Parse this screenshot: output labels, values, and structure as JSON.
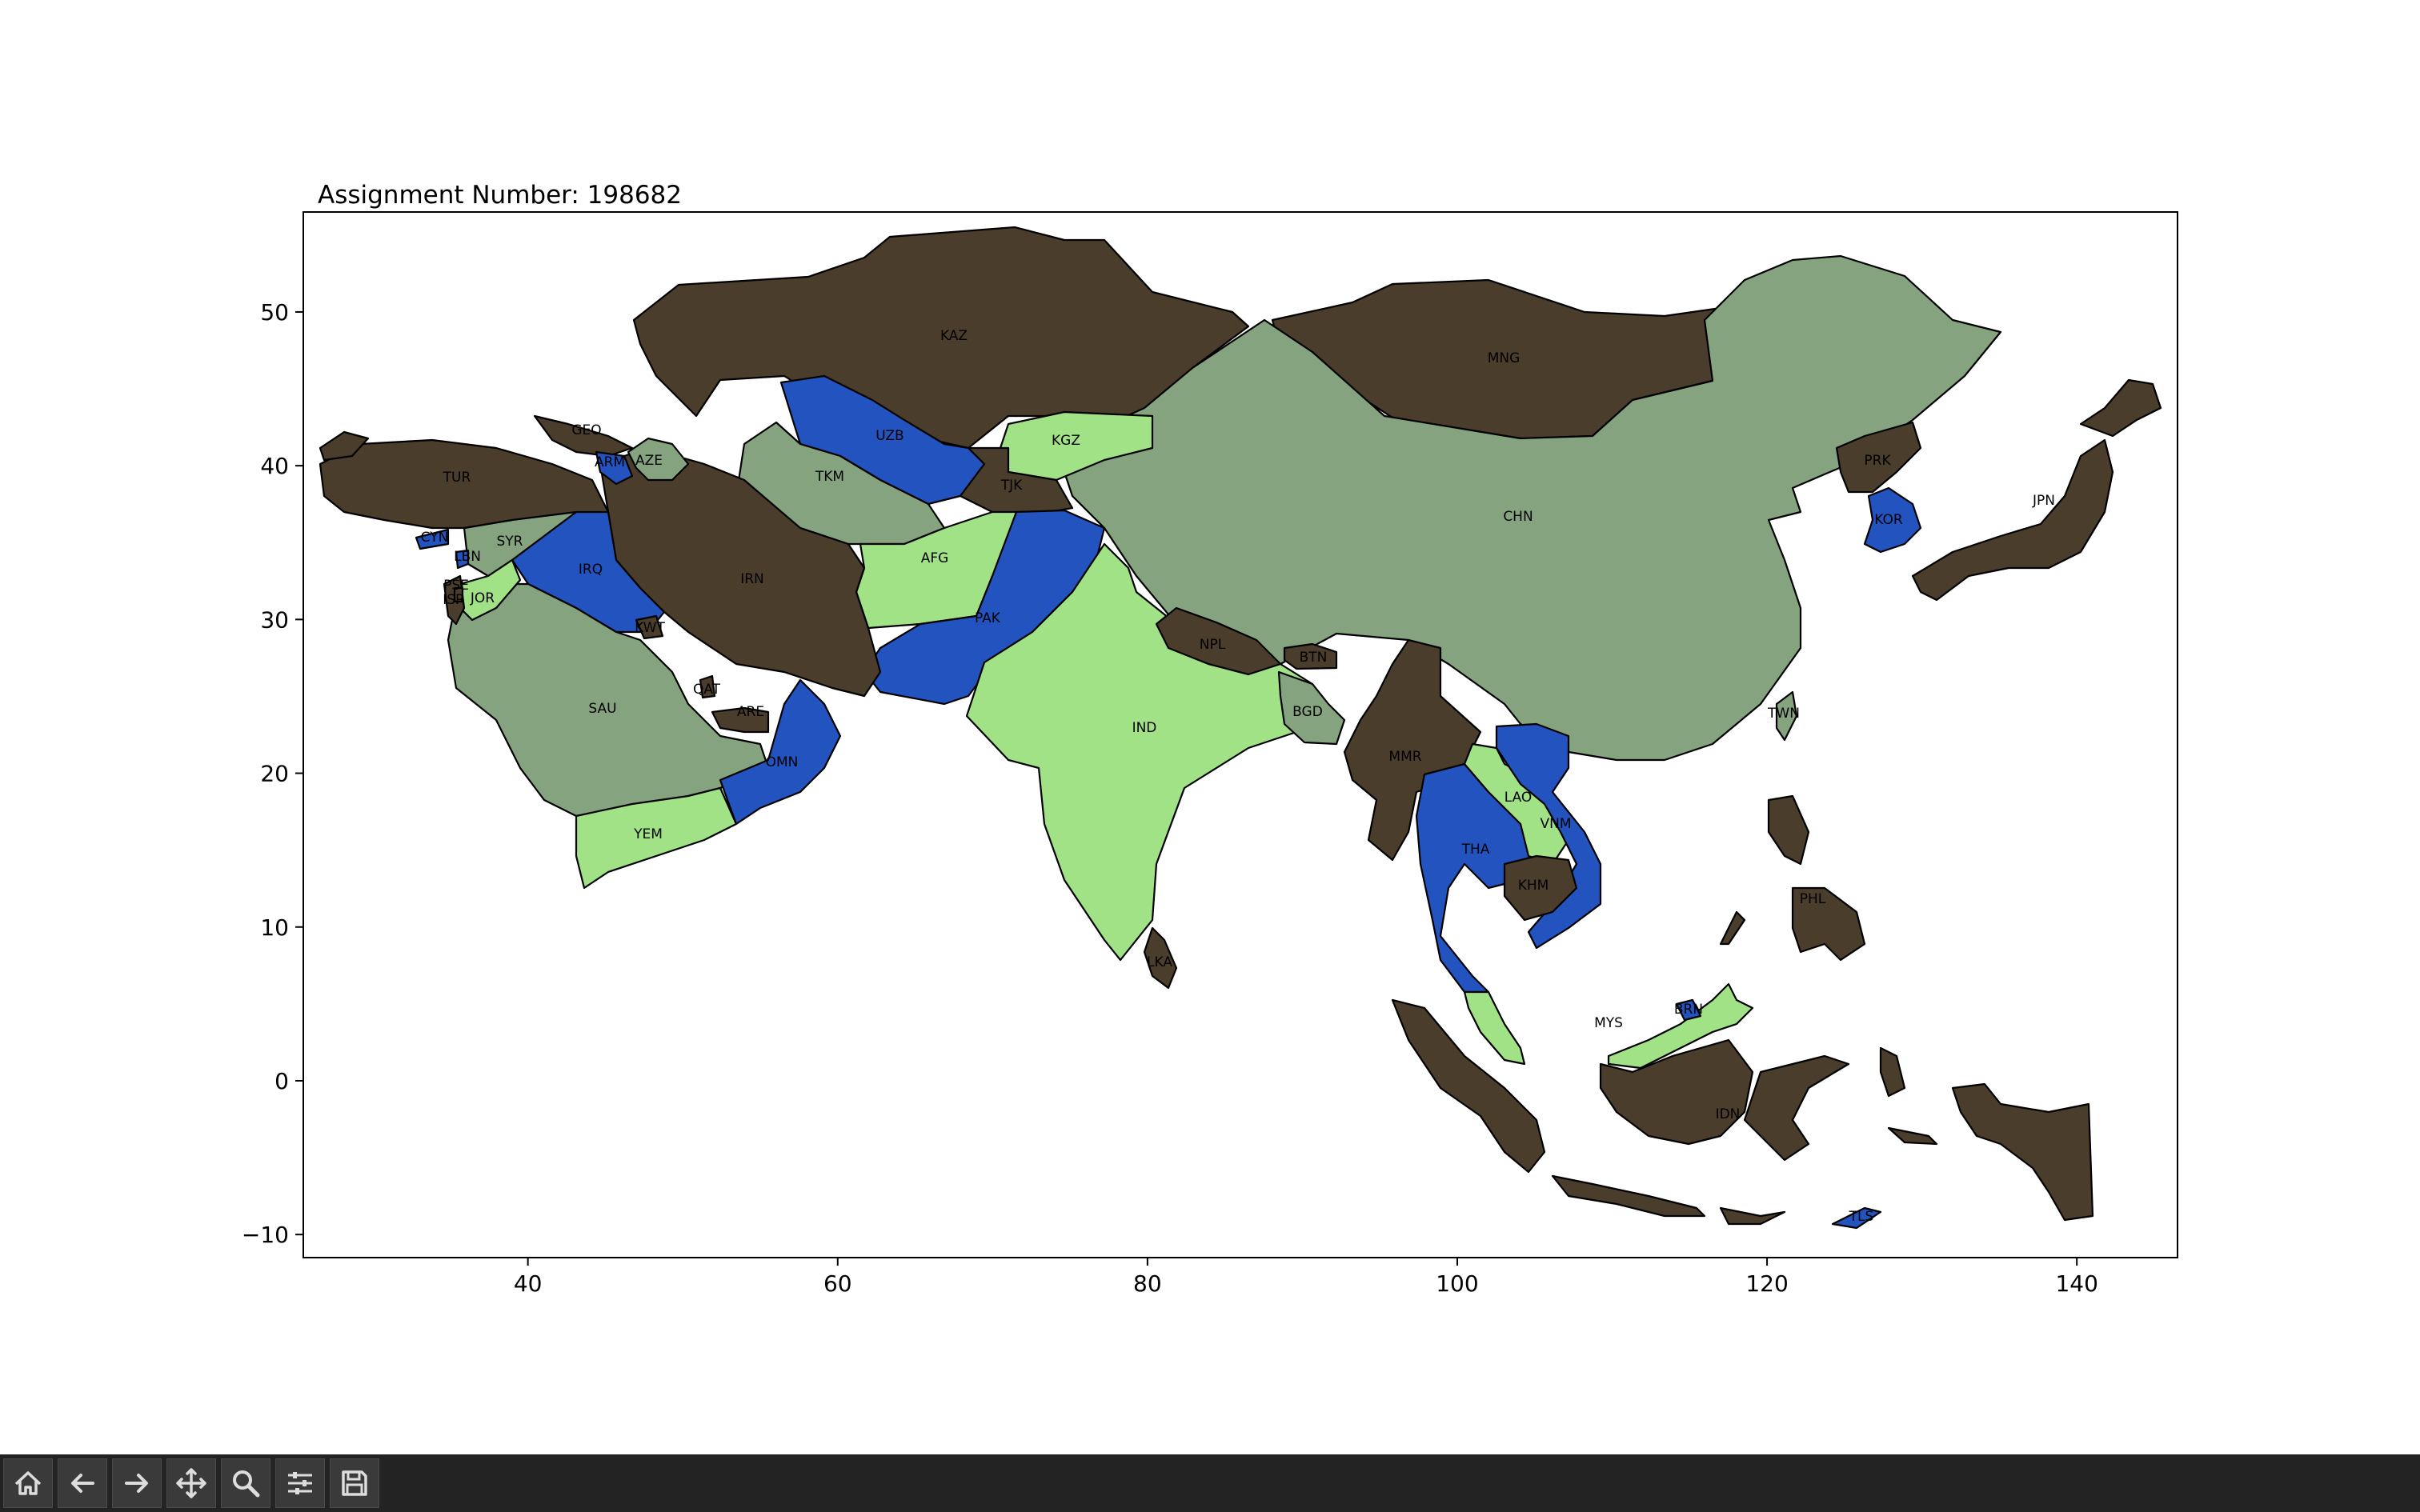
{
  "title": "Assignment Number: 198682",
  "palette": {
    "dark_brown": "#4a3d2b",
    "blue": "#2353bf",
    "light_green": "#a1e286",
    "sage": "#86a380"
  },
  "axes": {
    "x_ticks": [
      "40",
      "60",
      "80",
      "100",
      "120",
      "140"
    ],
    "y_ticks": [
      "50",
      "40",
      "30",
      "20",
      "10",
      "0",
      "−10"
    ],
    "xlim": [
      25.5,
      146.5
    ],
    "ylim": [
      -11.5,
      56.5
    ]
  },
  "regions": [
    {
      "code": "KAZ",
      "color": "dark_brown"
    },
    {
      "code": "MNG",
      "color": "dark_brown"
    },
    {
      "code": "CHN",
      "color": "sage"
    },
    {
      "code": "UZB",
      "color": "blue"
    },
    {
      "code": "TKM",
      "color": "sage"
    },
    {
      "code": "KGZ",
      "color": "light_green"
    },
    {
      "code": "TJK",
      "color": "dark_brown"
    },
    {
      "code": "AFG",
      "color": "light_green"
    },
    {
      "code": "PAK",
      "color": "blue"
    },
    {
      "code": "IND",
      "color": "light_green"
    },
    {
      "code": "NPL",
      "color": "dark_brown"
    },
    {
      "code": "BTN",
      "color": "dark_brown"
    },
    {
      "code": "BGD",
      "color": "sage"
    },
    {
      "code": "MMR",
      "color": "dark_brown"
    },
    {
      "code": "THA",
      "color": "blue"
    },
    {
      "code": "LAO",
      "color": "light_green"
    },
    {
      "code": "VNM",
      "color": "blue"
    },
    {
      "code": "KHM",
      "color": "dark_brown"
    },
    {
      "code": "MYS",
      "color": "light_green"
    },
    {
      "code": "BRN",
      "color": "blue"
    },
    {
      "code": "IDN",
      "color": "dark_brown"
    },
    {
      "code": "PHL",
      "color": "dark_brown"
    },
    {
      "code": "TLS",
      "color": "blue"
    },
    {
      "code": "PRK",
      "color": "dark_brown"
    },
    {
      "code": "KOR",
      "color": "blue"
    },
    {
      "code": "JPN",
      "color": "dark_brown"
    },
    {
      "code": "TWN",
      "color": "sage"
    },
    {
      "code": "LKA",
      "color": "dark_brown"
    },
    {
      "code": "IRN",
      "color": "dark_brown"
    },
    {
      "code": "IRQ",
      "color": "blue"
    },
    {
      "code": "SYR",
      "color": "sage"
    },
    {
      "code": "TUR",
      "color": "dark_brown"
    },
    {
      "code": "GEO",
      "color": "dark_brown"
    },
    {
      "code": "ARM",
      "color": "blue"
    },
    {
      "code": "AZE",
      "color": "sage"
    },
    {
      "code": "SAU",
      "color": "sage"
    },
    {
      "code": "YEM",
      "color": "light_green"
    },
    {
      "code": "OMN",
      "color": "blue"
    },
    {
      "code": "ARE",
      "color": "dark_brown"
    },
    {
      "code": "QAT",
      "color": "dark_brown"
    },
    {
      "code": "KWT",
      "color": "dark_brown"
    },
    {
      "code": "JOR",
      "color": "light_green"
    },
    {
      "code": "ISR",
      "color": "dark_brown"
    },
    {
      "code": "LBN",
      "color": "blue"
    },
    {
      "code": "CYN",
      "color": "blue"
    },
    {
      "code": "PSE",
      "color": "dark_brown"
    }
  ],
  "toolbar": [
    "home-icon",
    "back-icon",
    "forward-icon",
    "pan-icon",
    "zoom-icon",
    "configure-subplots-icon",
    "save-icon"
  ]
}
